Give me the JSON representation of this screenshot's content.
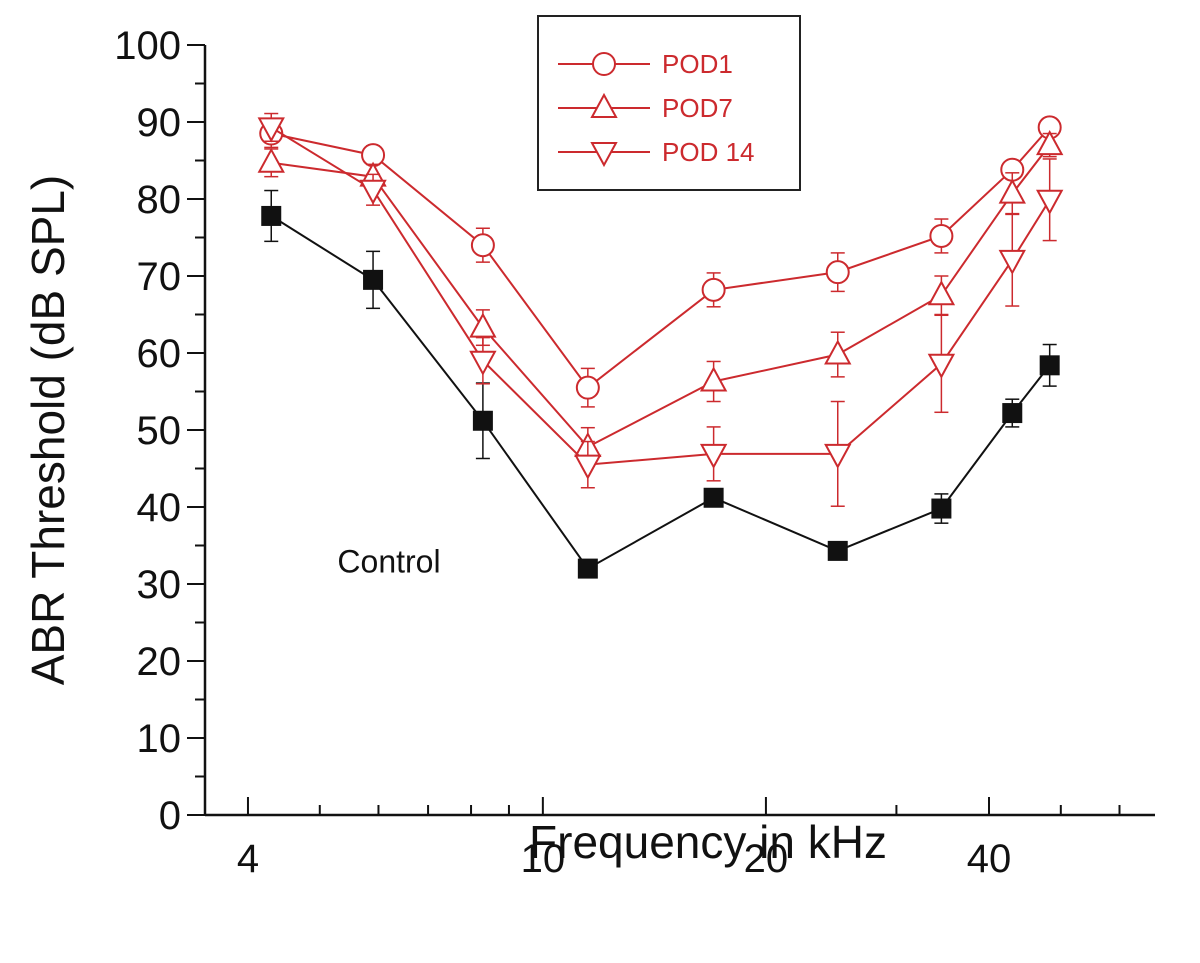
{
  "chart_data": {
    "type": "line",
    "xscale": "log",
    "xlabel": "Frequency in kHz",
    "ylabel": "ABR Threshold (dB SPL)",
    "xlim": [
      3.5,
      67
    ],
    "ylim": [
      0,
      100
    ],
    "x_tick_labels": [
      {
        "value": 4,
        "label": "4"
      },
      {
        "value": 10,
        "label": "10"
      },
      {
        "value": 20,
        "label": "20"
      },
      {
        "value": 40,
        "label": "40"
      }
    ],
    "x_minor_ticks": [
      5,
      6,
      7,
      8,
      9,
      30,
      50,
      60
    ],
    "y_ticks": [
      0,
      10,
      20,
      30,
      40,
      50,
      60,
      70,
      80,
      90,
      100
    ],
    "y_minor_ticks": [
      5,
      15,
      25,
      35,
      45,
      55,
      65,
      75,
      85,
      95
    ],
    "annotations": [
      {
        "text": "Control",
        "x": 6.2,
        "y": 31.5
      }
    ],
    "legend_position": "top-center",
    "series": [
      {
        "name": "Control",
        "marker": "square-filled",
        "color": "#111111",
        "in_legend": false,
        "x": [
          4.3,
          5.9,
          8.3,
          11.5,
          17,
          25,
          34.5,
          43,
          48.3
        ],
        "y": [
          77.8,
          69.5,
          51.2,
          32,
          41.2,
          34.3,
          39.8,
          52.2,
          58.4
        ],
        "err": [
          3.3,
          3.7,
          4.9,
          0.8,
          1.0,
          0.9,
          1.9,
          1.8,
          2.7
        ]
      },
      {
        "name": "POD1",
        "marker": "circle-open",
        "color": "#cc2a2e",
        "in_legend": true,
        "x": [
          4.3,
          5.9,
          8.3,
          11.5,
          17,
          25,
          34.5,
          43,
          48.3
        ],
        "y": [
          88.5,
          85.7,
          74,
          55.5,
          68.2,
          70.5,
          75.2,
          83.8,
          89.3
        ],
        "err": [
          1.8,
          1.2,
          2.2,
          2.5,
          2.2,
          2.5,
          2.2,
          1.0,
          1.0
        ]
      },
      {
        "name": "POD7",
        "marker": "triangle-up-open",
        "color": "#cc2a2e",
        "in_legend": true,
        "x": [
          4.3,
          5.9,
          8.3,
          11.5,
          17,
          25,
          34.5,
          43,
          48.3
        ],
        "y": [
          84.7,
          82.9,
          63.3,
          47.8,
          56.3,
          59.8,
          67.5,
          80.7,
          87
        ],
        "err": [
          1.8,
          1.6,
          2.3,
          2.5,
          2.6,
          2.9,
          2.5,
          2.7,
          1.5
        ]
      },
      {
        "name": "POD 14",
        "marker": "triangle-down-open",
        "color": "#cc2a2e",
        "in_legend": true,
        "x": [
          4.3,
          5.9,
          8.3,
          11.5,
          17,
          25,
          34.5,
          43,
          48.3
        ],
        "y": [
          89.3,
          81.2,
          59,
          45.5,
          46.9,
          46.9,
          58.6,
          72.1,
          79.9
        ],
        "err": [
          1.8,
          2.0,
          3.0,
          3.0,
          3.5,
          6.8,
          6.3,
          6.0,
          5.3
        ]
      }
    ]
  }
}
